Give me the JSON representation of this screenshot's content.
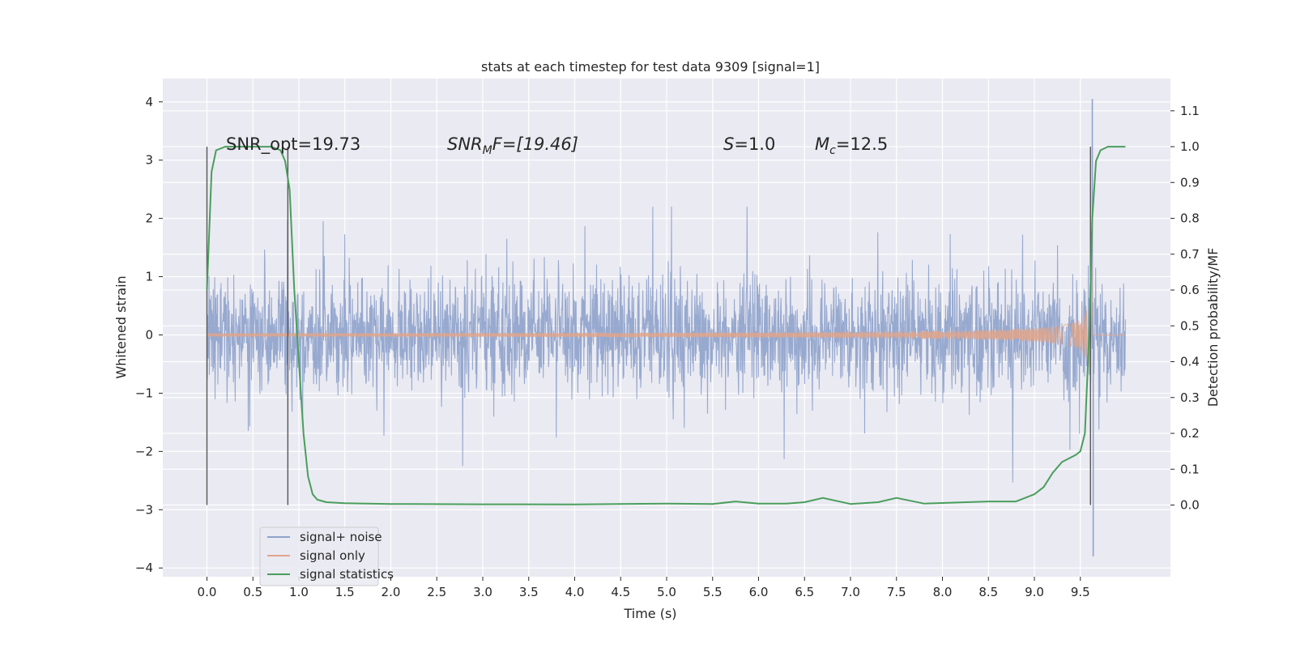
{
  "chart_data": {
    "type": "line",
    "title": "stats at each timestep for test data 9309 [signal=1]",
    "xlabel": "Time (s)",
    "ylabel": "Whitened strain",
    "y2label": "Detection probability/MF",
    "xlim": [
      -0.48,
      10.48
    ],
    "ylim": [
      -4.15,
      4.4
    ],
    "y2lim": [
      -0.2,
      1.19
    ],
    "xticks": [
      "0.0",
      "0.5",
      "1.0",
      "1.5",
      "2.0",
      "2.5",
      "3.0",
      "3.5",
      "4.0",
      "4.5",
      "5.0",
      "5.5",
      "6.0",
      "6.5",
      "7.0",
      "7.5",
      "8.0",
      "8.5",
      "9.0",
      "9.5"
    ],
    "yticks": [
      "4",
      "3",
      "2",
      "1",
      "0",
      "−1",
      "−2",
      "−3",
      "−4"
    ],
    "y2ticks": [
      "1.1",
      "1.0",
      "0.9",
      "0.8",
      "0.7",
      "0.6",
      "0.5",
      "0.4",
      "0.3",
      "0.2",
      "0.1",
      "0.0"
    ],
    "grid": true,
    "legend": {
      "position": "lower-left",
      "entries": [
        {
          "label": "signal+ noise",
          "color": "#8ea2cb"
        },
        {
          "label": "signal only",
          "color": "#e0a58a"
        },
        {
          "label": "signal statistics",
          "color": "#4a9e5c"
        }
      ]
    },
    "annotations": {
      "snr_opt": "SNR_opt=19.73",
      "snr_mf_sym": "SNR",
      "snr_mf_sub": "M",
      "snr_mf_rest": "F=[19.46]",
      "s_sym": "S",
      "s_rest": "=1.0",
      "mc_sym": "M",
      "mc_sub": "c",
      "mc_rest": "=12.5"
    },
    "vertical_markers_x": [
      0.0,
      0.88,
      9.61
    ],
    "vertical_markers_y2": [
      0.0,
      1.0
    ],
    "series": [
      {
        "name": "signal+ noise",
        "color": "#8ea2cb",
        "x_range": [
          0.0,
          9.99
        ],
        "envelope_abs": 0.72,
        "spike_max": 2.2,
        "spike_min": -2.7,
        "extreme_points": [
          [
            9.63,
            4.05
          ],
          [
            9.64,
            -3.8
          ]
        ]
      },
      {
        "name": "signal only",
        "color": "#e0a58a",
        "x_range": [
          0.0,
          9.99
        ],
        "merger_x": 9.63,
        "peak_amplitude": 1.9,
        "visible_from_x": 5.5
      },
      {
        "name": "signal statistics",
        "color": "#4a9e5c",
        "axis": "right",
        "x": [
          0.0,
          0.05,
          0.1,
          0.15,
          0.2,
          0.3,
          0.5,
          0.7,
          0.8,
          0.85,
          0.9,
          0.95,
          1.0,
          1.05,
          1.1,
          1.15,
          1.2,
          1.3,
          1.5,
          2.0,
          3.0,
          4.0,
          5.0,
          5.5,
          5.75,
          6.0,
          6.3,
          6.5,
          6.7,
          7.0,
          7.3,
          7.5,
          7.8,
          8.5,
          8.8,
          9.0,
          9.1,
          9.2,
          9.3,
          9.45,
          9.5,
          9.55,
          9.6,
          9.63,
          9.67,
          9.72,
          9.8,
          9.99
        ],
        "y": [
          0.6,
          0.93,
          0.99,
          0.995,
          1.0,
          1.0,
          1.0,
          1.0,
          0.99,
          0.96,
          0.88,
          0.6,
          0.4,
          0.2,
          0.08,
          0.03,
          0.015,
          0.008,
          0.005,
          0.003,
          0.002,
          0.0015,
          0.004,
          0.003,
          0.01,
          0.004,
          0.004,
          0.008,
          0.02,
          0.003,
          0.008,
          0.02,
          0.004,
          0.01,
          0.01,
          0.03,
          0.05,
          0.09,
          0.12,
          0.14,
          0.15,
          0.2,
          0.5,
          0.8,
          0.96,
          0.99,
          1.0,
          1.0
        ]
      }
    ]
  }
}
